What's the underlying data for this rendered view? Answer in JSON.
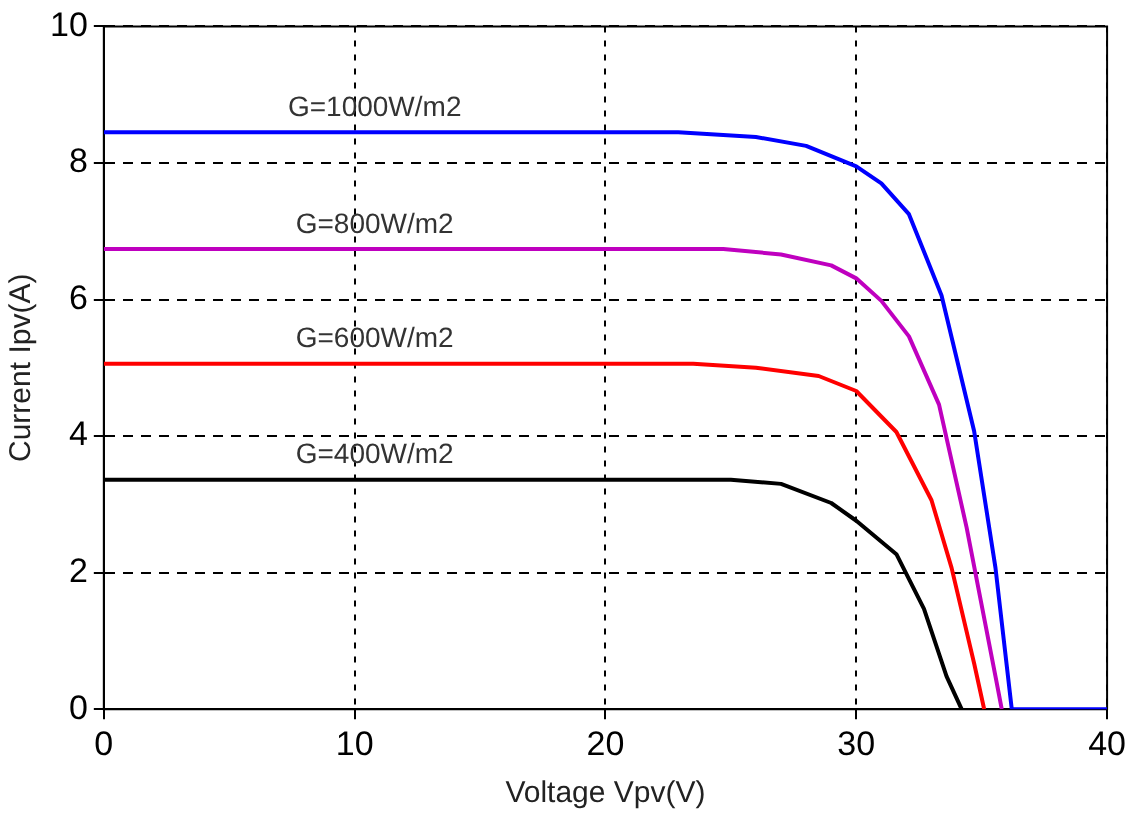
{
  "chart_data": {
    "type": "line",
    "xlabel": "Voltage Vpv(V)",
    "ylabel": "Current Ipv(A)",
    "xlim": [
      0,
      40
    ],
    "xticks": [
      0,
      10,
      20,
      30,
      40
    ],
    "ylim": [
      0,
      10
    ],
    "yticks": [
      0,
      2,
      4,
      6,
      8,
      10
    ],
    "grid": true,
    "legend": false,
    "marker": "none",
    "line_style": "solid",
    "series": [
      {
        "name": "G=1000W/m2",
        "color": "#0000ff",
        "x": [
          0,
          22.9,
          26,
          28,
          30,
          31,
          32.1,
          33.4,
          34.7,
          35.55,
          36.2,
          40
        ],
        "values": [
          8.45,
          8.45,
          8.38,
          8.25,
          7.95,
          7.7,
          7.25,
          6.06,
          4.07,
          2.07,
          0,
          0
        ]
      },
      {
        "name": "G=800W/m2",
        "color": "#bf00bf",
        "x": [
          0,
          24.7,
          27,
          29,
          30,
          31,
          32.1,
          33.3,
          34.4,
          35.55,
          35.8
        ],
        "values": [
          6.74,
          6.74,
          6.66,
          6.5,
          6.31,
          5.98,
          5.46,
          4.46,
          2.66,
          0.48,
          0
        ]
      },
      {
        "name": "G=600W/m2",
        "color": "#ff0000",
        "x": [
          0,
          23.5,
          26,
          28.5,
          30,
          31.6,
          33,
          33.8,
          34.7,
          35.1
        ],
        "values": [
          5.06,
          5.06,
          5.0,
          4.88,
          4.66,
          4.06,
          3.06,
          2.07,
          0.67,
          0
        ]
      },
      {
        "name": "G=400W/m2",
        "color": "#000000",
        "x": [
          0,
          25,
          27,
          29,
          30,
          31.6,
          32.7,
          33.6,
          34.2
        ],
        "values": [
          3.36,
          3.36,
          3.3,
          3.02,
          2.76,
          2.27,
          1.47,
          0.48,
          0
        ]
      }
    ]
  }
}
